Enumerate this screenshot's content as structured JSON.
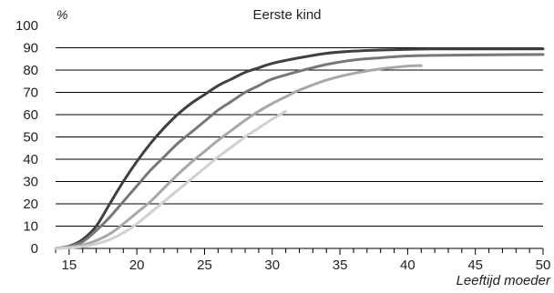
{
  "chart_data": {
    "type": "line",
    "title": "Eerste kind",
    "ylabel": "%",
    "xlabel": "Leeftijd moeder",
    "xlim": [
      14,
      50
    ],
    "ylim": [
      0,
      100
    ],
    "x_ticks": [
      15,
      20,
      25,
      30,
      35,
      40,
      45,
      50
    ],
    "y_ticks": [
      0,
      10,
      20,
      30,
      40,
      50,
      60,
      70,
      80,
      90,
      100
    ],
    "grid": "horizontal",
    "legend": "none",
    "series": [
      {
        "color": "#404040",
        "x": [
          14,
          15,
          16,
          17,
          18,
          19,
          20,
          21,
          22,
          23,
          24,
          25,
          26,
          27,
          28,
          29,
          30,
          32,
          34,
          36,
          38,
          40,
          42,
          45,
          50
        ],
        "y": [
          0,
          1,
          4,
          10,
          20,
          30,
          39,
          47,
          54,
          60,
          65,
          69,
          73,
          76,
          79,
          81,
          83,
          85.5,
          87.5,
          88.5,
          89,
          89.3,
          89.5,
          89.5,
          89.5
        ]
      },
      {
        "color": "#777777",
        "x": [
          14,
          15,
          16,
          17,
          18,
          19,
          20,
          21,
          22,
          23,
          24,
          25,
          26,
          27,
          28,
          29,
          30,
          32,
          34,
          36,
          38,
          40,
          42,
          45,
          50
        ],
        "y": [
          0,
          1,
          3,
          8,
          14,
          21,
          28,
          35,
          41,
          47,
          52,
          57,
          62,
          66,
          70,
          73,
          76,
          79.5,
          82.5,
          84.5,
          85.5,
          86.3,
          86.6,
          86.8,
          87
        ]
      },
      {
        "color": "#a8a8a8",
        "x": [
          14,
          15,
          16,
          17,
          18,
          19,
          20,
          21,
          22,
          23,
          24,
          25,
          26,
          27,
          28,
          29,
          30,
          31,
          32,
          34,
          36,
          38,
          40,
          41
        ],
        "y": [
          0,
          0.5,
          1.5,
          3.5,
          6.5,
          11,
          16,
          21,
          27,
          33,
          38.5,
          43.5,
          48.5,
          53,
          57.5,
          61.5,
          65,
          68,
          71,
          75.5,
          78.5,
          80.5,
          81.8,
          82
        ]
      },
      {
        "color": "#d0d0d0",
        "x": [
          14,
          15,
          16,
          17,
          18,
          19,
          20,
          21,
          22,
          23,
          24,
          25,
          26,
          27,
          28,
          29,
          30,
          31
        ],
        "y": [
          0,
          0.3,
          0.8,
          2,
          4,
          7,
          11,
          16,
          21,
          26,
          31,
          36,
          41,
          45.5,
          50,
          54,
          58,
          61.5
        ]
      }
    ]
  }
}
